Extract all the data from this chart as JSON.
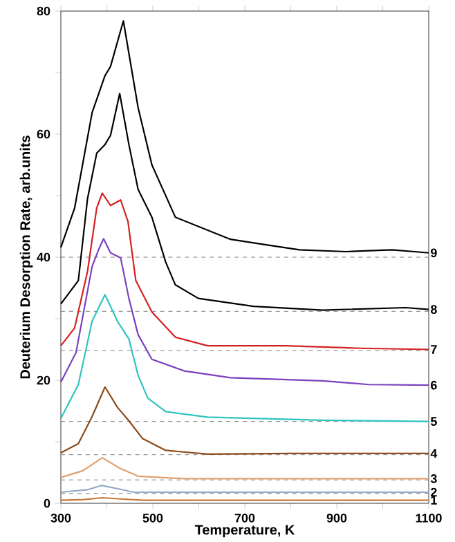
{
  "chart_data": {
    "type": "line",
    "xlabel": "Temperature, K",
    "ylabel": "Deuterium Desorption Rate, arb.units",
    "xlim": [
      300,
      1100
    ],
    "ylim": [
      0,
      80
    ],
    "xticks": [
      300,
      {
        "value": 400,
        "label": null
      },
      500,
      {
        "value": 600,
        "label": null
      },
      700,
      {
        "value": 800,
        "label": null
      },
      900,
      {
        "value": 1000,
        "label": null
      },
      1100
    ],
    "yticks": [
      0,
      {
        "value": 10,
        "label": null
      },
      20,
      {
        "value": 30,
        "label": null
      },
      40,
      {
        "value": 50,
        "label": null
      },
      60,
      {
        "value": 70,
        "label": null
      },
      80
    ],
    "grid": false,
    "marker": "none",
    "line_style": "solid",
    "ref_lines": [
      {
        "axis": "y",
        "value": 40,
        "color": "#808080",
        "line_style": "dashed"
      },
      {
        "axis": "y",
        "value": 31.2,
        "color": "#808080",
        "line_style": "dashed"
      },
      {
        "axis": "y",
        "value": 24.8,
        "color": "#808080",
        "line_style": "dashed"
      },
      {
        "axis": "y",
        "value": 13.3,
        "color": "#808080",
        "line_style": "dashed"
      },
      {
        "axis": "y",
        "value": 7.9,
        "color": "#808080",
        "line_style": "dashed"
      },
      {
        "axis": "y",
        "value": 3.8,
        "color": "#808080",
        "line_style": "dashed"
      },
      {
        "axis": "y",
        "value": 1.6,
        "color": "#808080",
        "line_style": "dashed"
      }
    ],
    "series": [
      {
        "name": "1",
        "color": "#c87838",
        "x": [
          300,
          350,
          390,
          430,
          480,
          600,
          800,
          1100
        ],
        "values": [
          0.5,
          0.6,
          0.9,
          0.7,
          0.5,
          0.5,
          0.5,
          0.5
        ]
      },
      {
        "name": "2",
        "color": "#90aac8",
        "x": [
          300,
          358,
          388,
          428,
          458,
          600,
          800,
          1100
        ],
        "values": [
          1.8,
          2.2,
          2.9,
          2.3,
          1.8,
          1.8,
          1.8,
          1.8
        ]
      },
      {
        "name": "3",
        "color": "#e0a070",
        "x": [
          300,
          348,
          390,
          428,
          468,
          569,
          800,
          1100
        ],
        "values": [
          4.2,
          5.3,
          7.4,
          5.7,
          4.4,
          4.0,
          4.0,
          4.0
        ]
      },
      {
        "name": "4",
        "color": "#8b4a1a",
        "x": [
          300,
          338,
          368,
          396,
          423,
          448,
          478,
          528,
          619,
          800,
          1100
        ],
        "values": [
          8.2,
          9.7,
          14.1,
          18.9,
          15.6,
          13.4,
          10.5,
          8.6,
          8.0,
          8.1,
          8.1
        ]
      },
      {
        "name": "5",
        "color": "#2ec4c0",
        "x": [
          300,
          338,
          368,
          396,
          423,
          448,
          468,
          489,
          528,
          619,
          869,
          1100
        ],
        "values": [
          13.8,
          19.3,
          29.6,
          33.9,
          29.6,
          26.7,
          20.8,
          17.1,
          14.9,
          14.0,
          13.5,
          13.3
        ]
      },
      {
        "name": "6",
        "color": "#7b3fbf",
        "x": [
          300,
          333,
          368,
          383,
          393,
          408,
          430,
          448,
          468,
          498,
          569,
          669,
          869,
          970,
          1100
        ],
        "values": [
          19.7,
          24.5,
          38.5,
          41.4,
          43.0,
          40.7,
          39.9,
          33.3,
          27.4,
          23.4,
          21.5,
          20.4,
          19.9,
          19.3,
          19.2
        ]
      },
      {
        "name": "7",
        "color": "#d42020",
        "x": [
          300,
          330,
          358,
          378,
          390,
          408,
          430,
          446,
          463,
          498,
          549,
          619,
          789,
          950,
          1100
        ],
        "values": [
          25.6,
          28.5,
          37.7,
          48.0,
          50.4,
          48.4,
          49.3,
          45.8,
          36.2,
          31.1,
          27.0,
          25.6,
          25.6,
          25.2,
          25.0
        ]
      },
      {
        "name": "8",
        "color": "#000000",
        "x": [
          300,
          338,
          358,
          378,
          396,
          408,
          428,
          448,
          468,
          498,
          528,
          549,
          599,
          719,
          869,
          1050,
          1100
        ],
        "values": [
          32.4,
          36.2,
          49.5,
          56.9,
          58.3,
          59.8,
          66.6,
          58.3,
          51.0,
          46.5,
          39.2,
          35.5,
          33.3,
          32.0,
          31.4,
          31.8,
          31.5
        ]
      },
      {
        "name": "9",
        "color": "#000000",
        "x": [
          300,
          330,
          368,
          396,
          408,
          436,
          468,
          498,
          549,
          669,
          739,
          819,
          920,
          1020,
          1100
        ],
        "values": [
          41.6,
          48.0,
          63.5,
          69.5,
          71.0,
          78.4,
          64.3,
          55.0,
          46.5,
          42.9,
          42.1,
          41.2,
          40.9,
          41.2,
          40.7
        ]
      }
    ]
  }
}
